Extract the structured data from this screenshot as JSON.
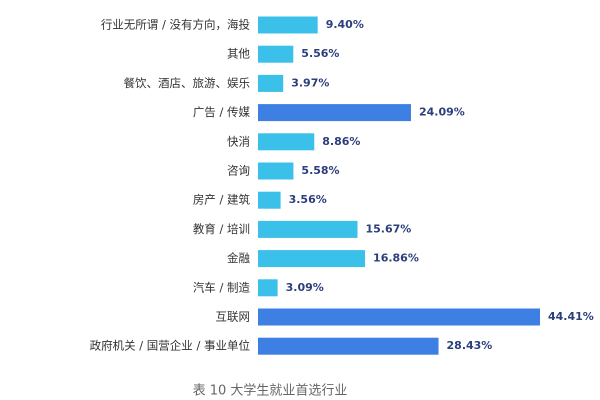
{
  "chart_data": {
    "type": "bar",
    "orientation": "horizontal",
    "caption": "表 10 大学生就业首选行业",
    "categories": [
      "行业无所谓 / 没有方向，海投",
      "其他",
      "餐饮、酒店、旅游、娱乐",
      "广告 / 传媒",
      "快消",
      "咨询",
      "房产 / 建筑",
      "教育 / 培训",
      "金融",
      "汽车 / 制造",
      "互联网",
      "政府机关 / 国营企业 / 事业单位"
    ],
    "values": [
      9.4,
      5.56,
      3.97,
      24.09,
      8.86,
      5.58,
      3.56,
      15.67,
      16.86,
      3.09,
      44.41,
      28.43
    ],
    "value_labels": [
      "9.40%",
      "5.56%",
      "3.97%",
      "24.09%",
      "8.86%",
      "5.58%",
      "3.56%",
      "15.67%",
      "16.86%",
      "3.09%",
      "44.41%",
      "28.43%"
    ],
    "colors": [
      "#3bc0ea",
      "#3bc0ea",
      "#3bc0ea",
      "#3e7fe3",
      "#3bc0ea",
      "#3bc0ea",
      "#3bc0ea",
      "#3bc0ea",
      "#3bc0ea",
      "#3bc0ea",
      "#3e7fe3",
      "#3e7fe3"
    ]
  }
}
